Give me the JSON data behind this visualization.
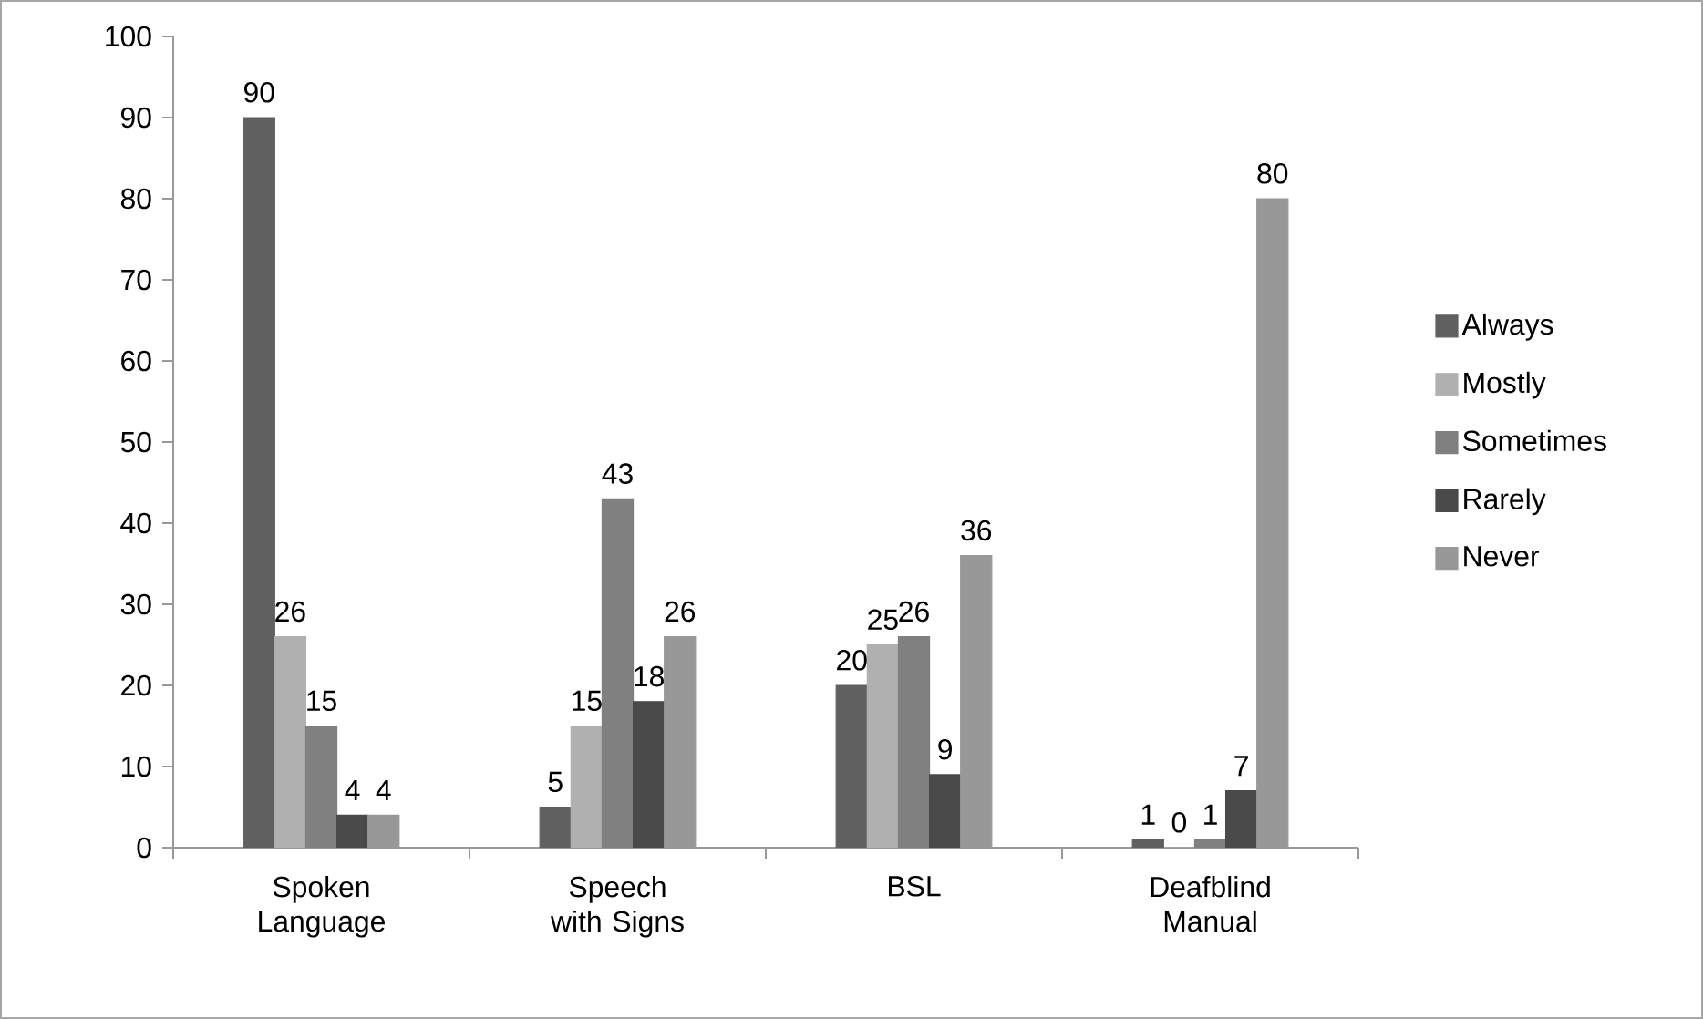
{
  "chart_data": {
    "type": "bar",
    "categories": [
      "Spoken Language",
      "Speech with Signs",
      "BSL",
      "Deafblind Manual"
    ],
    "series": [
      {
        "name": "Always",
        "color": "#606060",
        "values": [
          90,
          5,
          20,
          1
        ]
      },
      {
        "name": "Mostly",
        "color": "#b0b0b0",
        "values": [
          26,
          15,
          25,
          0
        ]
      },
      {
        "name": "Sometimes",
        "color": "#808080",
        "values": [
          15,
          43,
          26,
          1
        ]
      },
      {
        "name": "Rarely",
        "color": "#4a4a4a",
        "values": [
          4,
          18,
          9,
          7
        ]
      },
      {
        "name": "Never",
        "color": "#989898",
        "values": [
          4,
          26,
          36,
          80
        ]
      }
    ],
    "ylim": [
      0,
      100
    ],
    "yticks": [
      0,
      10,
      20,
      30,
      40,
      50,
      60,
      70,
      80,
      90,
      100
    ],
    "data_labels": true,
    "legend": "right",
    "grid": false
  }
}
